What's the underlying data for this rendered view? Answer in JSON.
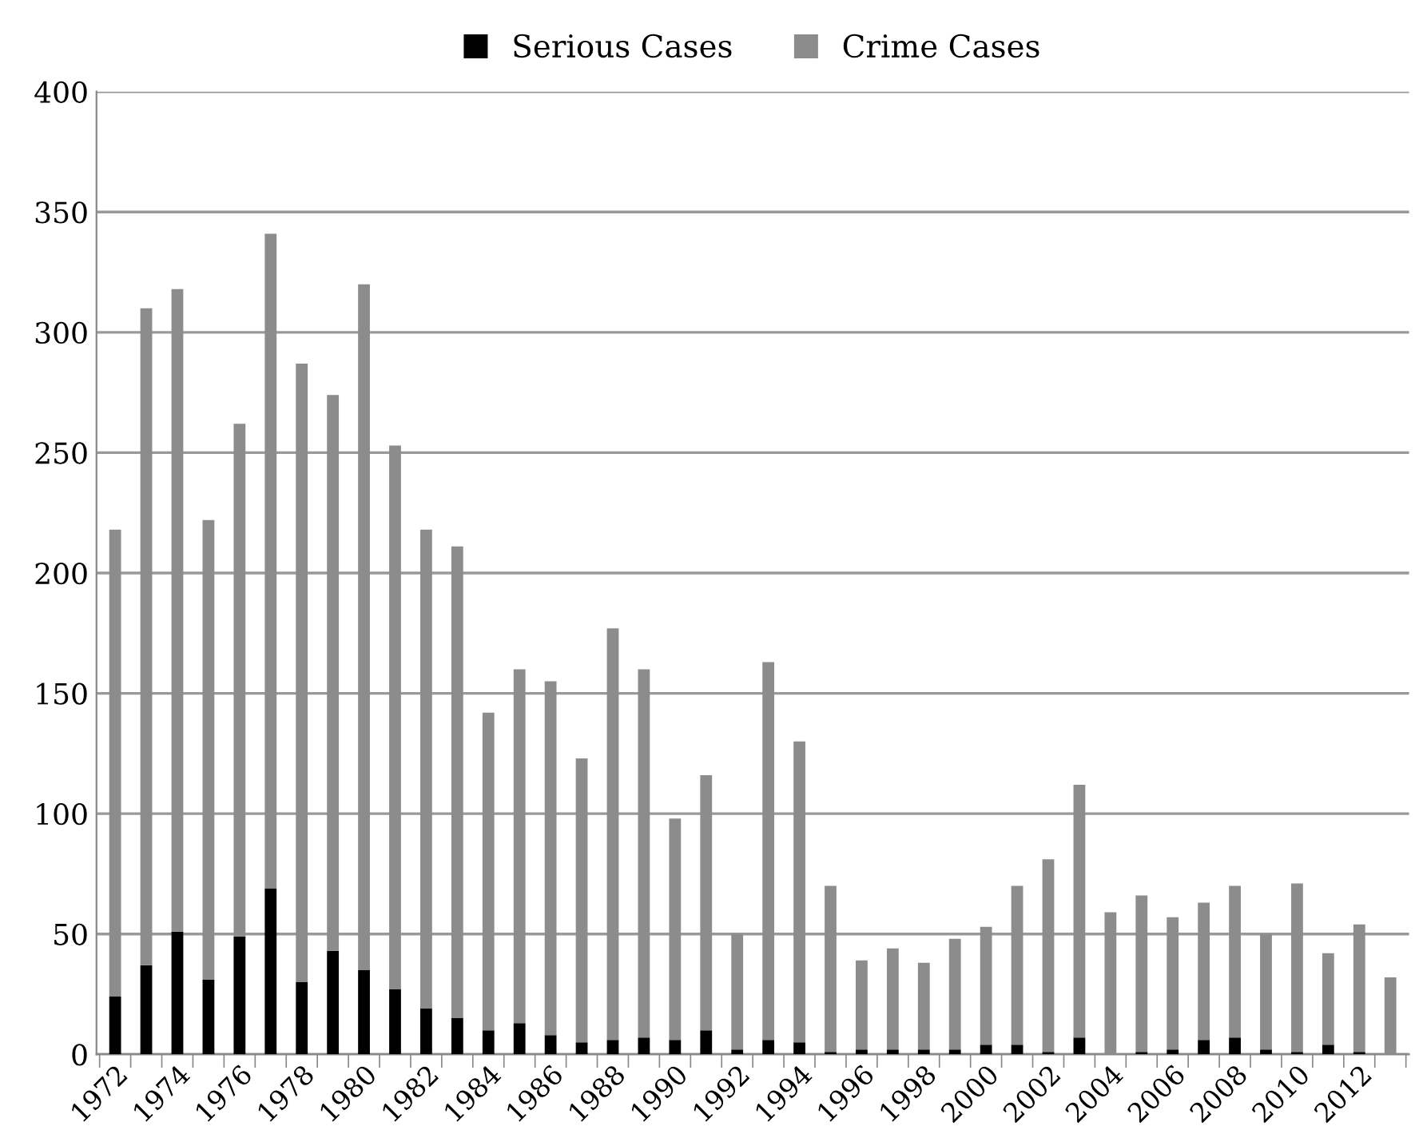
{
  "chart_data": {
    "type": "bar",
    "stacked": true,
    "categories": [
      "1972",
      null,
      "1974",
      null,
      "1976",
      null,
      "1978",
      null,
      "1980",
      null,
      "1982",
      null,
      "1984",
      null,
      "1986",
      null,
      "1988",
      null,
      "1990",
      null,
      "1992",
      null,
      "1994",
      null,
      "1996",
      null,
      "1998",
      null,
      "2000",
      null,
      "2002",
      null,
      "2004",
      null,
      "2006",
      null,
      "2008",
      null,
      "2010",
      null,
      "2012",
      null
    ],
    "series": [
      {
        "name": "Serious Cases",
        "color": "#000000",
        "values": [
          24,
          37,
          51,
          31,
          49,
          69,
          30,
          43,
          35,
          27,
          19,
          15,
          10,
          13,
          8,
          5,
          6,
          7,
          6,
          10,
          2,
          6,
          5,
          1,
          2,
          2,
          2,
          2,
          4,
          4,
          1,
          7,
          0,
          1,
          2,
          6,
          7,
          2,
          1,
          4,
          1,
          0
        ]
      },
      {
        "name": "Crime Cases",
        "color": "#8c8c8c",
        "values": [
          194,
          273,
          267,
          191,
          213,
          272,
          257,
          231,
          285,
          226,
          199,
          196,
          132,
          147,
          147,
          118,
          171,
          153,
          92,
          106,
          48,
          157,
          125,
          69,
          37,
          42,
          36,
          46,
          49,
          66,
          80,
          105,
          59,
          65,
          55,
          57,
          63,
          48,
          70,
          38,
          53,
          32
        ]
      }
    ],
    "ylim": [
      0,
      400
    ],
    "yticks": [
      0,
      50,
      100,
      150,
      200,
      250,
      300,
      350,
      400
    ],
    "grid": "y",
    "legend": "top"
  }
}
